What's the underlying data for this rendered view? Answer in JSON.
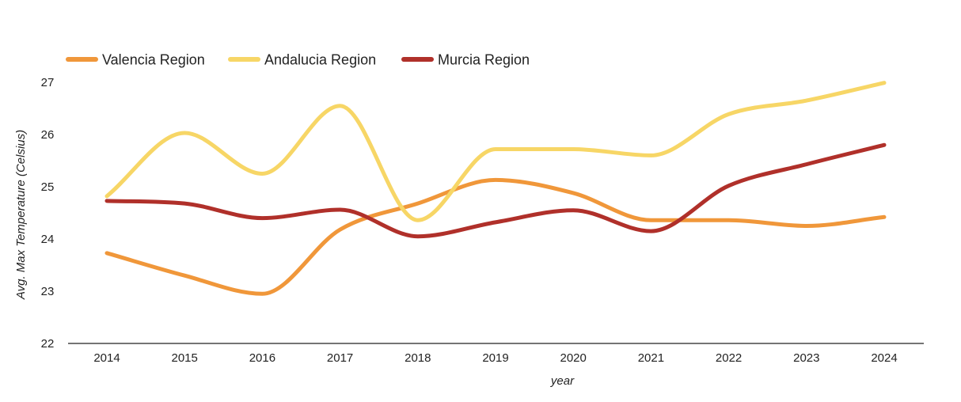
{
  "chart_data": {
    "type": "line",
    "title": "",
    "xlabel": "year",
    "ylabel": "Avg. Max Temperature (Celsius)",
    "x": [
      2014,
      2015,
      2016,
      2017,
      2018,
      2019,
      2020,
      2021,
      2022,
      2023,
      2024
    ],
    "ylim": [
      22,
      27
    ],
    "yticks": [
      22,
      23,
      24,
      25,
      26,
      27
    ],
    "grid": false,
    "legend_position": "top-left",
    "smooth": true,
    "series": [
      {
        "name": "Valencia Region",
        "color": "#F0973A",
        "values": [
          23.73,
          23.3,
          22.95,
          24.18,
          24.68,
          25.13,
          24.88,
          24.36,
          24.36,
          24.25,
          24.42
        ]
      },
      {
        "name": "Andalucia Region",
        "color": "#F7D666",
        "values": [
          24.82,
          26.03,
          25.25,
          26.55,
          24.36,
          25.72,
          25.72,
          25.6,
          26.39,
          26.65,
          26.99
        ]
      },
      {
        "name": "Murcia Region",
        "color": "#B0302A",
        "values": [
          24.73,
          24.68,
          24.4,
          24.56,
          24.05,
          24.32,
          24.55,
          24.15,
          25.02,
          25.43,
          25.8
        ]
      }
    ]
  }
}
